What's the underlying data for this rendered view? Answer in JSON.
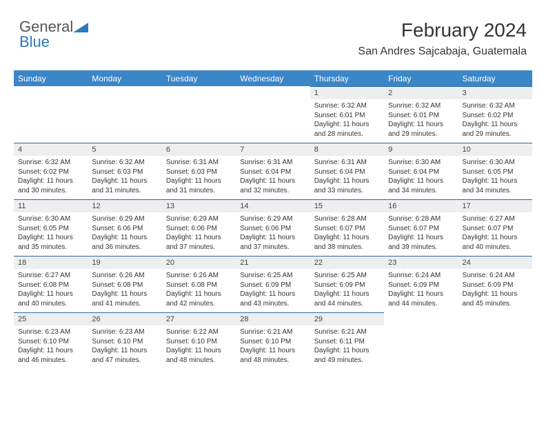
{
  "logo": {
    "text_general": "General",
    "text_blue": "Blue"
  },
  "title": "February 2024",
  "location": "San Andres Sajcabaja, Guatemala",
  "colors": {
    "header_bg": "#3b86c7",
    "header_text": "#ffffff",
    "daynum_bg": "#edeef0",
    "row_border": "#2e6aa0",
    "body_text": "#333333",
    "logo_blue": "#2e78bd"
  },
  "day_headers": [
    "Sunday",
    "Monday",
    "Tuesday",
    "Wednesday",
    "Thursday",
    "Friday",
    "Saturday"
  ],
  "weeks": [
    [
      {
        "n": "",
        "sr": "",
        "ss": "",
        "dl": ""
      },
      {
        "n": "",
        "sr": "",
        "ss": "",
        "dl": ""
      },
      {
        "n": "",
        "sr": "",
        "ss": "",
        "dl": ""
      },
      {
        "n": "",
        "sr": "",
        "ss": "",
        "dl": ""
      },
      {
        "n": "1",
        "sr": "Sunrise: 6:32 AM",
        "ss": "Sunset: 6:01 PM",
        "dl": "Daylight: 11 hours and 28 minutes."
      },
      {
        "n": "2",
        "sr": "Sunrise: 6:32 AM",
        "ss": "Sunset: 6:01 PM",
        "dl": "Daylight: 11 hours and 29 minutes."
      },
      {
        "n": "3",
        "sr": "Sunrise: 6:32 AM",
        "ss": "Sunset: 6:02 PM",
        "dl": "Daylight: 11 hours and 29 minutes."
      }
    ],
    [
      {
        "n": "4",
        "sr": "Sunrise: 6:32 AM",
        "ss": "Sunset: 6:02 PM",
        "dl": "Daylight: 11 hours and 30 minutes."
      },
      {
        "n": "5",
        "sr": "Sunrise: 6:32 AM",
        "ss": "Sunset: 6:03 PM",
        "dl": "Daylight: 11 hours and 31 minutes."
      },
      {
        "n": "6",
        "sr": "Sunrise: 6:31 AM",
        "ss": "Sunset: 6:03 PM",
        "dl": "Daylight: 11 hours and 31 minutes."
      },
      {
        "n": "7",
        "sr": "Sunrise: 6:31 AM",
        "ss": "Sunset: 6:04 PM",
        "dl": "Daylight: 11 hours and 32 minutes."
      },
      {
        "n": "8",
        "sr": "Sunrise: 6:31 AM",
        "ss": "Sunset: 6:04 PM",
        "dl": "Daylight: 11 hours and 33 minutes."
      },
      {
        "n": "9",
        "sr": "Sunrise: 6:30 AM",
        "ss": "Sunset: 6:04 PM",
        "dl": "Daylight: 11 hours and 34 minutes."
      },
      {
        "n": "10",
        "sr": "Sunrise: 6:30 AM",
        "ss": "Sunset: 6:05 PM",
        "dl": "Daylight: 11 hours and 34 minutes."
      }
    ],
    [
      {
        "n": "11",
        "sr": "Sunrise: 6:30 AM",
        "ss": "Sunset: 6:05 PM",
        "dl": "Daylight: 11 hours and 35 minutes."
      },
      {
        "n": "12",
        "sr": "Sunrise: 6:29 AM",
        "ss": "Sunset: 6:06 PM",
        "dl": "Daylight: 11 hours and 36 minutes."
      },
      {
        "n": "13",
        "sr": "Sunrise: 6:29 AM",
        "ss": "Sunset: 6:06 PM",
        "dl": "Daylight: 11 hours and 37 minutes."
      },
      {
        "n": "14",
        "sr": "Sunrise: 6:29 AM",
        "ss": "Sunset: 6:06 PM",
        "dl": "Daylight: 11 hours and 37 minutes."
      },
      {
        "n": "15",
        "sr": "Sunrise: 6:28 AM",
        "ss": "Sunset: 6:07 PM",
        "dl": "Daylight: 11 hours and 38 minutes."
      },
      {
        "n": "16",
        "sr": "Sunrise: 6:28 AM",
        "ss": "Sunset: 6:07 PM",
        "dl": "Daylight: 11 hours and 39 minutes."
      },
      {
        "n": "17",
        "sr": "Sunrise: 6:27 AM",
        "ss": "Sunset: 6:07 PM",
        "dl": "Daylight: 11 hours and 40 minutes."
      }
    ],
    [
      {
        "n": "18",
        "sr": "Sunrise: 6:27 AM",
        "ss": "Sunset: 6:08 PM",
        "dl": "Daylight: 11 hours and 40 minutes."
      },
      {
        "n": "19",
        "sr": "Sunrise: 6:26 AM",
        "ss": "Sunset: 6:08 PM",
        "dl": "Daylight: 11 hours and 41 minutes."
      },
      {
        "n": "20",
        "sr": "Sunrise: 6:26 AM",
        "ss": "Sunset: 6:08 PM",
        "dl": "Daylight: 11 hours and 42 minutes."
      },
      {
        "n": "21",
        "sr": "Sunrise: 6:25 AM",
        "ss": "Sunset: 6:09 PM",
        "dl": "Daylight: 11 hours and 43 minutes."
      },
      {
        "n": "22",
        "sr": "Sunrise: 6:25 AM",
        "ss": "Sunset: 6:09 PM",
        "dl": "Daylight: 11 hours and 44 minutes."
      },
      {
        "n": "23",
        "sr": "Sunrise: 6:24 AM",
        "ss": "Sunset: 6:09 PM",
        "dl": "Daylight: 11 hours and 44 minutes."
      },
      {
        "n": "24",
        "sr": "Sunrise: 6:24 AM",
        "ss": "Sunset: 6:09 PM",
        "dl": "Daylight: 11 hours and 45 minutes."
      }
    ],
    [
      {
        "n": "25",
        "sr": "Sunrise: 6:23 AM",
        "ss": "Sunset: 6:10 PM",
        "dl": "Daylight: 11 hours and 46 minutes."
      },
      {
        "n": "26",
        "sr": "Sunrise: 6:23 AM",
        "ss": "Sunset: 6:10 PM",
        "dl": "Daylight: 11 hours and 47 minutes."
      },
      {
        "n": "27",
        "sr": "Sunrise: 6:22 AM",
        "ss": "Sunset: 6:10 PM",
        "dl": "Daylight: 11 hours and 48 minutes."
      },
      {
        "n": "28",
        "sr": "Sunrise: 6:21 AM",
        "ss": "Sunset: 6:10 PM",
        "dl": "Daylight: 11 hours and 48 minutes."
      },
      {
        "n": "29",
        "sr": "Sunrise: 6:21 AM",
        "ss": "Sunset: 6:11 PM",
        "dl": "Daylight: 11 hours and 49 minutes."
      },
      {
        "n": "",
        "sr": "",
        "ss": "",
        "dl": ""
      },
      {
        "n": "",
        "sr": "",
        "ss": "",
        "dl": ""
      }
    ]
  ]
}
